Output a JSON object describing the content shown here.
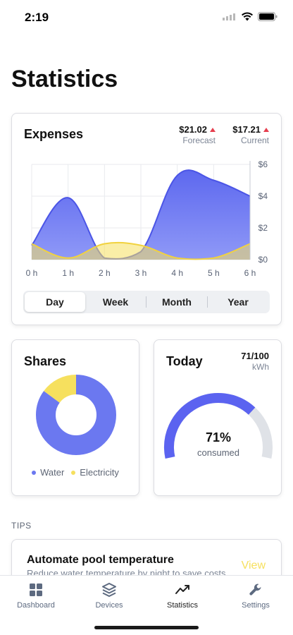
{
  "status_bar": {
    "time": "2:19"
  },
  "page": {
    "title": "Statistics"
  },
  "expenses": {
    "title": "Expenses",
    "forecast": {
      "value": "$21.02",
      "label": "Forecast",
      "trend": "up"
    },
    "current": {
      "value": "$17.21",
      "label": "Current",
      "trend": "up"
    },
    "periods": [
      "Day",
      "Week",
      "Month",
      "Year"
    ],
    "selected_period": "Day"
  },
  "chart_data": {
    "type": "area",
    "x": [
      "0 h",
      "1 h",
      "2 h",
      "3 h",
      "4 h",
      "5 h",
      "6 h"
    ],
    "y_ticks": [
      "$0",
      "$2",
      "$4",
      "$6"
    ],
    "ylim": [
      0,
      6
    ],
    "ylabel_position": "right",
    "grid": true,
    "series": [
      {
        "color": "#6b78f0",
        "values": [
          0.9,
          3.9,
          0.1,
          0.5,
          5.3,
          5.0,
          4.0
        ]
      },
      {
        "color": "#f6e05e",
        "values": [
          1.0,
          0.1,
          1.0,
          0.9,
          0.1,
          0.1,
          1.0
        ]
      }
    ]
  },
  "shares": {
    "title": "Shares",
    "legend": [
      {
        "label": "Water",
        "color": "#6b78f0"
      },
      {
        "label": "Electricity",
        "color": "#f6e05e"
      }
    ],
    "values": [
      85,
      15
    ]
  },
  "today": {
    "title": "Today",
    "usage": "71/100",
    "unit": "kWh",
    "percent_text": "71%",
    "percent": 71,
    "label": "consumed",
    "fill_color": "#5b63f0",
    "track_color": "#dfe2e7"
  },
  "tips": {
    "section_label": "TIPS",
    "items": [
      {
        "title": "Automate pool temperature",
        "description": "Reduce water temperature by night to save costs.",
        "action": "View"
      }
    ]
  },
  "tab_bar": {
    "items": [
      {
        "label": "Dashboard",
        "icon": "dashboard-icon"
      },
      {
        "label": "Devices",
        "icon": "layers-icon"
      },
      {
        "label": "Statistics",
        "icon": "trend-icon"
      },
      {
        "label": "Settings",
        "icon": "wrench-icon"
      }
    ],
    "active": "Statistics"
  }
}
